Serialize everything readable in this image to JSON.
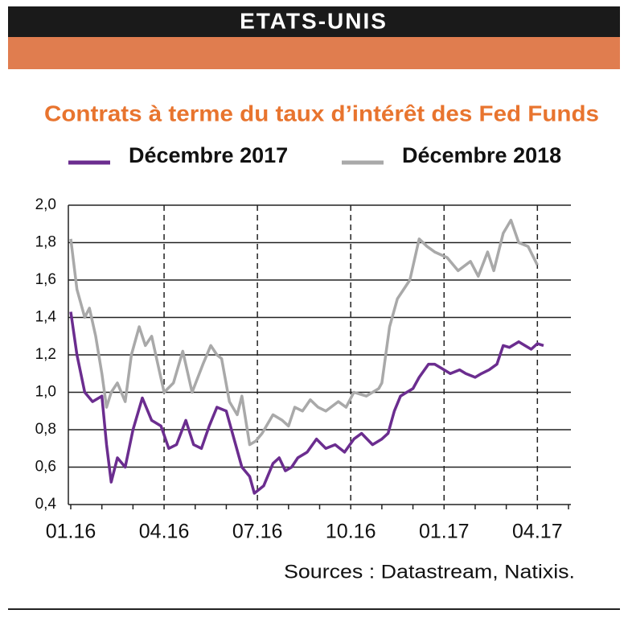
{
  "header": {
    "title": "ETATS-UNIS"
  },
  "chart_data": {
    "type": "line",
    "title": "Contrats à terme du taux d’intérêt des Fed Funds",
    "source": "Sources : Datastream, Natixis.",
    "xlim": [
      0,
      16
    ],
    "xticks": [
      {
        "value": 0,
        "label": "01.16"
      },
      {
        "value": 3,
        "label": "04.16"
      },
      {
        "value": 6,
        "label": "07.16"
      },
      {
        "value": 9,
        "label": "10.16"
      },
      {
        "value": 12,
        "label": "01.17"
      },
      {
        "value": 15,
        "label": "04.17"
      }
    ],
    "ylim": [
      0.4,
      2.0
    ],
    "yticks": [
      {
        "value": 0.4,
        "label": "0,4"
      },
      {
        "value": 0.6,
        "label": "0,6"
      },
      {
        "value": 0.8,
        "label": "0,8"
      },
      {
        "value": 1.0,
        "label": "1,0"
      },
      {
        "value": 1.2,
        "label": "1,2"
      },
      {
        "value": 1.4,
        "label": "1,4"
      },
      {
        "value": 1.6,
        "label": "1,6"
      },
      {
        "value": 1.8,
        "label": "1,8"
      },
      {
        "value": 2.0,
        "label": "2,0"
      }
    ],
    "grid": true,
    "series": [
      {
        "name": "Décembre 2017",
        "color": "#6b2d8f",
        "x": [
          0,
          0.2,
          0.45,
          0.7,
          1.0,
          1.15,
          1.3,
          1.5,
          1.75,
          2.0,
          2.3,
          2.6,
          2.9,
          3.15,
          3.4,
          3.7,
          3.95,
          4.2,
          4.45,
          4.7,
          5.0,
          5.25,
          5.5,
          5.75,
          5.9,
          6.2,
          6.5,
          6.7,
          6.9,
          7.1,
          7.3,
          7.6,
          7.9,
          8.2,
          8.5,
          8.8,
          9.1,
          9.35,
          9.7,
          10.0,
          10.2,
          10.4,
          10.6,
          10.8,
          11.0,
          11.2,
          11.5,
          11.7,
          11.9,
          12.2,
          12.5,
          12.7,
          13.0,
          13.2,
          13.45,
          13.7,
          13.9,
          14.1,
          14.4,
          14.6,
          14.8,
          15.0,
          15.2
        ],
        "values": [
          1.43,
          1.2,
          1.0,
          0.95,
          0.98,
          0.72,
          0.52,
          0.65,
          0.6,
          0.8,
          0.97,
          0.85,
          0.82,
          0.7,
          0.72,
          0.85,
          0.72,
          0.7,
          0.82,
          0.92,
          0.9,
          0.75,
          0.6,
          0.55,
          0.46,
          0.5,
          0.62,
          0.65,
          0.58,
          0.6,
          0.65,
          0.68,
          0.75,
          0.7,
          0.72,
          0.68,
          0.75,
          0.78,
          0.72,
          0.75,
          0.78,
          0.9,
          0.98,
          1.0,
          1.02,
          1.08,
          1.15,
          1.15,
          1.13,
          1.1,
          1.12,
          1.1,
          1.08,
          1.1,
          1.12,
          1.15,
          1.25,
          1.24,
          1.27,
          1.25,
          1.23,
          1.26,
          1.25
        ]
      },
      {
        "name": "Décembre 2018",
        "color": "#a9a9a9",
        "x": [
          0,
          0.2,
          0.45,
          0.6,
          0.8,
          1.0,
          1.15,
          1.3,
          1.5,
          1.75,
          1.95,
          2.2,
          2.4,
          2.6,
          2.8,
          3.0,
          3.3,
          3.6,
          3.9,
          4.25,
          4.5,
          4.7,
          4.85,
          5.1,
          5.35,
          5.5,
          5.75,
          5.95,
          6.15,
          6.5,
          6.8,
          7.0,
          7.2,
          7.45,
          7.7,
          7.95,
          8.2,
          8.6,
          8.85,
          9.1,
          9.5,
          9.9,
          10.0,
          10.25,
          10.5,
          10.7,
          10.9,
          11.2,
          11.45,
          11.7,
          12.1,
          12.45,
          12.85,
          13.1,
          13.4,
          13.6,
          13.9,
          14.15,
          14.4,
          14.7,
          15.0
        ],
        "values": [
          1.82,
          1.55,
          1.4,
          1.45,
          1.3,
          1.1,
          0.92,
          1.0,
          1.05,
          0.95,
          1.2,
          1.35,
          1.25,
          1.3,
          1.15,
          1.0,
          1.05,
          1.22,
          1.0,
          1.15,
          1.25,
          1.2,
          1.18,
          0.95,
          0.88,
          0.98,
          0.72,
          0.74,
          0.78,
          0.88,
          0.85,
          0.82,
          0.92,
          0.9,
          0.96,
          0.92,
          0.9,
          0.95,
          0.92,
          1.0,
          0.98,
          1.02,
          1.05,
          1.35,
          1.5,
          1.55,
          1.6,
          1.82,
          1.78,
          1.75,
          1.72,
          1.65,
          1.7,
          1.62,
          1.75,
          1.65,
          1.85,
          1.92,
          1.8,
          1.78,
          1.68
        ]
      }
    ]
  }
}
